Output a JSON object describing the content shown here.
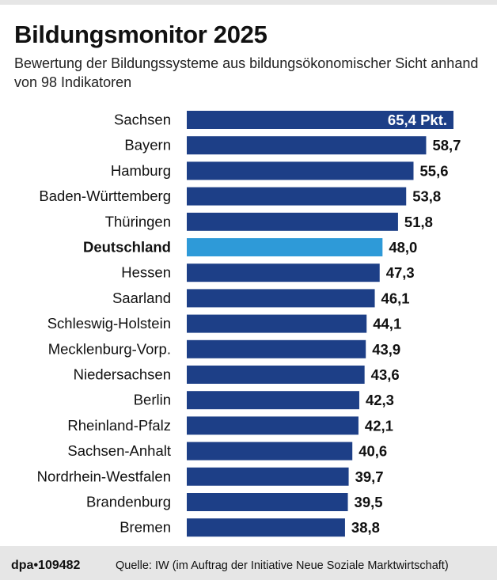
{
  "title": "Bildungsmonitor 2025",
  "subtitle": "Bewertung der Bildungssysteme aus bildungsökonomischer Sicht anhand von 98 Indikatoren",
  "footer": {
    "agency_id": "dpa•109482",
    "source": "Quelle: IW (im Auftrag der Initiative Neue Soziale Marktwirtschaft)"
  },
  "colors": {
    "bar": "#1d3f87",
    "highlight": "#2e9ad8",
    "text": "#111111"
  },
  "chart_data": {
    "type": "bar",
    "orientation": "horizontal",
    "title": "Bildungsmonitor 2025",
    "subtitle": "Bewertung der Bildungssysteme aus bildungsökonomischer Sicht anhand von 98 Indikatoren",
    "unit_suffix_first": " Pkt.",
    "categories": [
      "Sachsen",
      "Bayern",
      "Hamburg",
      "Baden-Württemberg",
      "Thüringen",
      "Deutschland",
      "Hessen",
      "Saarland",
      "Schleswig-Holstein",
      "Mecklenburg-Vorp.",
      "Niedersachsen",
      "Berlin",
      "Rheinland-Pfalz",
      "Sachsen-Anhalt",
      "Nordrhein-Westfalen",
      "Brandenburg",
      "Bremen"
    ],
    "values": [
      65.4,
      58.7,
      55.6,
      53.8,
      51.8,
      48.0,
      47.3,
      46.1,
      44.1,
      43.9,
      43.6,
      42.3,
      42.1,
      40.6,
      39.7,
      39.5,
      38.8
    ],
    "value_labels": [
      "65,4 Pkt.",
      "58,7",
      "55,6",
      "53,8",
      "51,8",
      "48,0",
      "47,3",
      "46,1",
      "44,1",
      "43,9",
      "43,6",
      "42,3",
      "42,1",
      "40,6",
      "39,7",
      "39,5",
      "38,8"
    ],
    "highlight": "Deutschland",
    "xlim": [
      0,
      65.4
    ],
    "grid": false,
    "legend": "none"
  }
}
